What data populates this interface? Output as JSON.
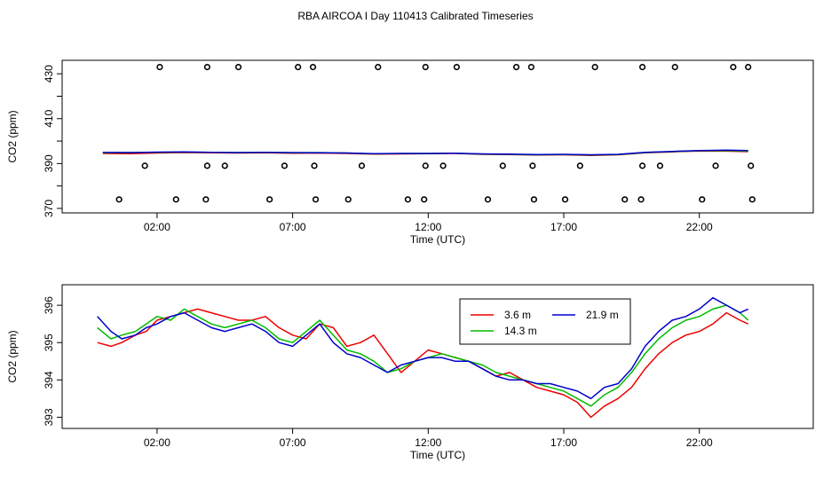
{
  "title": "RBA AIRCOA I  Day 110413  Calibrated Timeseries",
  "chart_data": [
    {
      "type": "scatter",
      "xlabel": "Time (UTC)",
      "ylabel": "CO2 (ppm)",
      "xlim": [
        -1.5,
        26.2
      ],
      "ylim": [
        368,
        436
      ],
      "xticks": [
        "02:00",
        "07:00",
        "12:00",
        "17:00",
        "22:00"
      ],
      "xtick_values": [
        2,
        7,
        12,
        17,
        22
      ],
      "yticks": [
        370,
        390,
        410,
        430
      ],
      "minor_yticks": [
        380,
        400,
        420
      ],
      "series": [
        {
          "color": "#ee0000",
          "x": [
            0,
            1,
            2,
            3,
            4,
            5,
            6,
            7,
            8,
            9,
            10,
            11,
            12,
            13,
            14,
            15,
            16,
            17,
            18,
            19,
            20,
            21,
            22,
            23,
            23.8
          ],
          "y": [
            394.5,
            394.4,
            394.7,
            394.9,
            394.8,
            394.7,
            394.8,
            394.6,
            394.7,
            394.5,
            394.2,
            394.3,
            394.4,
            394.5,
            394.1,
            394.0,
            393.8,
            393.9,
            393.6,
            393.9,
            394.8,
            395.2,
            395.6,
            395.5,
            395.3
          ]
        },
        {
          "color": "#00bb00",
          "x": [
            0,
            1,
            2,
            3,
            4,
            5,
            6,
            7,
            8,
            9,
            10,
            11,
            12,
            13,
            14,
            15,
            16,
            17,
            18,
            19,
            20,
            21,
            22,
            23,
            23.8
          ],
          "y": [
            394.8,
            394.9,
            395.0,
            395.1,
            395.0,
            394.9,
            395.0,
            394.8,
            394.9,
            394.7,
            394.3,
            394.5,
            394.5,
            394.6,
            394.2,
            394.1,
            393.9,
            394.0,
            393.8,
            394.0,
            394.9,
            395.3,
            395.7,
            395.8,
            395.6
          ]
        },
        {
          "color": "#0000cc",
          "x": [
            0,
            1,
            2,
            3,
            4,
            5,
            6,
            7,
            8,
            9,
            10,
            11,
            12,
            13,
            14,
            15,
            16,
            17,
            18,
            19,
            20,
            21,
            22,
            23,
            23.8
          ],
          "y": [
            395.0,
            394.9,
            395.1,
            395.2,
            395.0,
            394.9,
            395.0,
            394.9,
            394.8,
            394.7,
            394.4,
            394.5,
            394.5,
            394.6,
            394.3,
            394.2,
            394.0,
            394.1,
            393.9,
            394.1,
            395.0,
            395.4,
            395.8,
            396.0,
            395.8
          ]
        }
      ],
      "outliers": [
        {
          "x": [
            2.1,
            3.85,
            5.0,
            7.2,
            7.75,
            10.15,
            11.9,
            13.05,
            15.25,
            15.8,
            18.15,
            19.9,
            21.1,
            23.25,
            23.8
          ],
          "y": [
            433,
            433,
            433,
            433,
            433,
            433,
            433,
            433,
            433,
            433,
            433,
            433,
            433,
            433,
            433
          ]
        },
        {
          "x": [
            1.55,
            3.85,
            4.5,
            6.7,
            7.8,
            9.55,
            11.9,
            12.55,
            14.75,
            15.85,
            17.6,
            19.9,
            20.55,
            22.6,
            23.9
          ],
          "y": [
            389,
            389,
            389,
            389,
            389,
            389,
            389,
            389,
            389,
            389,
            389,
            389,
            389,
            389,
            389
          ]
        },
        {
          "x": [
            0.6,
            2.7,
            3.8,
            6.15,
            7.85,
            9.05,
            11.25,
            11.85,
            14.2,
            15.9,
            17.05,
            19.25,
            19.85,
            22.1,
            23.95
          ],
          "y": [
            374,
            374,
            374,
            374,
            374,
            374,
            374,
            374,
            374,
            374,
            374,
            374,
            374,
            374,
            374
          ]
        }
      ]
    },
    {
      "type": "line",
      "xlabel": "Time (UTC)",
      "ylabel": "CO2 (ppm)",
      "xlim": [
        -1.5,
        26.2
      ],
      "ylim": [
        392.7,
        396.55
      ],
      "xticks": [
        "02:00",
        "07:00",
        "12:00",
        "17:00",
        "22:00"
      ],
      "xtick_values": [
        2,
        7,
        12,
        17,
        22
      ],
      "yticks": [
        393,
        394,
        395,
        396
      ],
      "legend": {
        "placement": "top-center"
      },
      "series": [
        {
          "name": "3.6 m",
          "color": "#ee0000",
          "x": [
            -0.2,
            0.3,
            0.7,
            1.2,
            1.6,
            2.0,
            2.5,
            3.0,
            3.5,
            4.0,
            4.5,
            5.0,
            5.5,
            6.0,
            6.5,
            7.0,
            7.5,
            8.0,
            8.5,
            9.0,
            9.5,
            10.0,
            10.5,
            11.0,
            11.5,
            12.0,
            12.5,
            13.0,
            13.5,
            14.0,
            14.5,
            15.0,
            15.5,
            16.0,
            16.5,
            17.0,
            17.5,
            18.0,
            18.5,
            19.0,
            19.5,
            20.0,
            20.5,
            21.0,
            21.5,
            22.0,
            22.5,
            23.0,
            23.5,
            23.8
          ],
          "y": [
            395.0,
            394.9,
            395.0,
            395.2,
            395.3,
            395.6,
            395.7,
            395.8,
            395.9,
            395.8,
            395.7,
            395.6,
            395.6,
            395.7,
            395.4,
            395.2,
            395.1,
            395.5,
            395.4,
            394.9,
            395.0,
            395.2,
            394.7,
            394.2,
            394.5,
            394.8,
            394.7,
            394.6,
            394.5,
            394.3,
            394.1,
            394.2,
            394.0,
            393.8,
            393.7,
            393.6,
            393.4,
            393.0,
            393.3,
            393.5,
            393.8,
            394.3,
            394.7,
            395.0,
            395.2,
            395.3,
            395.5,
            395.8,
            395.6,
            395.5
          ]
        },
        {
          "name": "14.3 m",
          "color": "#00bb00",
          "x": [
            -0.2,
            0.3,
            0.7,
            1.2,
            1.6,
            2.0,
            2.5,
            3.0,
            3.5,
            4.0,
            4.5,
            5.0,
            5.5,
            6.0,
            6.5,
            7.0,
            7.5,
            8.0,
            8.5,
            9.0,
            9.5,
            10.0,
            10.5,
            11.0,
            11.5,
            12.0,
            12.5,
            13.0,
            13.5,
            14.0,
            14.5,
            15.0,
            15.5,
            16.0,
            16.5,
            17.0,
            17.5,
            18.0,
            18.5,
            19.0,
            19.5,
            20.0,
            20.5,
            21.0,
            21.5,
            22.0,
            22.5,
            23.0,
            23.5,
            23.8
          ],
          "y": [
            395.4,
            395.1,
            395.2,
            395.3,
            395.5,
            395.7,
            395.6,
            395.9,
            395.7,
            395.5,
            395.4,
            395.5,
            395.6,
            395.4,
            395.1,
            395.0,
            395.3,
            395.6,
            395.2,
            394.8,
            394.7,
            394.5,
            394.2,
            394.3,
            394.5,
            394.6,
            394.7,
            394.6,
            394.5,
            394.4,
            394.2,
            394.1,
            394.0,
            393.9,
            393.8,
            393.7,
            393.5,
            393.3,
            393.6,
            393.8,
            394.2,
            394.7,
            395.1,
            395.4,
            395.6,
            395.7,
            395.9,
            396.0,
            395.8,
            395.6
          ]
        },
        {
          "name": "21.9 m",
          "color": "#0000cc",
          "x": [
            -0.2,
            0.3,
            0.7,
            1.2,
            1.6,
            2.0,
            2.5,
            3.0,
            3.5,
            4.0,
            4.5,
            5.0,
            5.5,
            6.0,
            6.5,
            7.0,
            7.5,
            8.0,
            8.5,
            9.0,
            9.5,
            10.0,
            10.5,
            11.0,
            11.5,
            12.0,
            12.5,
            13.0,
            13.5,
            14.0,
            14.5,
            15.0,
            15.5,
            16.0,
            16.5,
            17.0,
            17.5,
            18.0,
            18.5,
            19.0,
            19.5,
            20.0,
            20.5,
            21.0,
            21.5,
            22.0,
            22.5,
            23.0,
            23.5,
            23.8
          ],
          "y": [
            395.7,
            395.3,
            395.1,
            395.2,
            395.4,
            395.5,
            395.7,
            395.8,
            395.6,
            395.4,
            395.3,
            395.4,
            395.5,
            395.3,
            395.0,
            394.9,
            395.2,
            395.5,
            395.0,
            394.7,
            394.6,
            394.4,
            394.2,
            394.4,
            394.5,
            394.6,
            394.6,
            394.5,
            394.5,
            394.3,
            394.1,
            394.0,
            394.0,
            393.9,
            393.9,
            393.8,
            393.7,
            393.5,
            393.8,
            393.9,
            394.3,
            394.9,
            395.3,
            395.6,
            395.7,
            395.9,
            396.2,
            396.0,
            395.8,
            395.9
          ]
        }
      ]
    }
  ]
}
